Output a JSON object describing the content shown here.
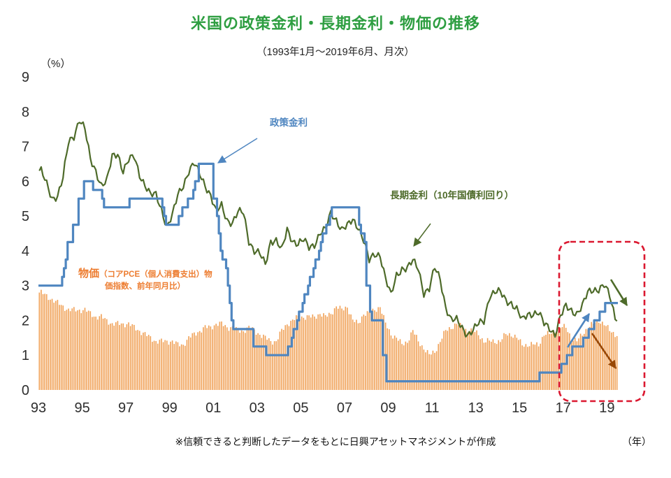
{
  "header": {
    "title": "米国の政策金利・長期金利・物価の推移",
    "subtitle": "（1993年1月～2019年6月、月次）"
  },
  "axes": {
    "percent_label": "（%）",
    "year_label": "（年）"
  },
  "footer": {
    "note": "※信頼できると判断したデータをもとに日興アセットマネジメントが作成"
  },
  "annotations": {
    "policy_label": "政策金利",
    "longterm_label": "長期金利（10年国債利回り）",
    "price_label_main": "物価",
    "price_label_rest": "（コアPCE（個人消費支出）物",
    "price_label_line2": "価指数、前年同月比）",
    "price_label_full": "物価（コアPCE（個人消費支出）物価指数、前年同月比）"
  },
  "colors": {
    "title": "#2e9e41",
    "policy": "#4f86c0",
    "longterm": "#4e6b2a",
    "price": "#f0a055",
    "price_text": "#ed7d31",
    "highlight": "#db1830",
    "arrow_brown": "#984807",
    "axis_text": "#2e2e2e"
  },
  "chart_data": {
    "type": "combo",
    "period": "1993-01 to 2019-06, monthly",
    "ylim": [
      0,
      9
    ],
    "y_ticks": [
      0,
      1,
      2,
      3,
      4,
      5,
      6,
      7,
      8,
      9
    ],
    "x_tick_years": [
      1993,
      1995,
      1997,
      1999,
      2001,
      2003,
      2005,
      2007,
      2009,
      2011,
      2013,
      2015,
      2017,
      2019
    ],
    "x_tick_labels": [
      "93",
      "95",
      "97",
      "99",
      "01",
      "03",
      "05",
      "07",
      "09",
      "11",
      "13",
      "15",
      "17",
      "19"
    ],
    "grid": false,
    "legend": "inline text annotations with arrows",
    "series": [
      {
        "name": "政策金利",
        "type": "step-line",
        "color_key": "policy",
        "points_note": "FF target rate changes [month, %]; constant until next change; ends 2019-06 at 2.5",
        "points": [
          [
            "1993-01",
            3.0
          ],
          [
            "1994-02",
            3.25
          ],
          [
            "1994-03",
            3.5
          ],
          [
            "1994-04",
            3.75
          ],
          [
            "1994-05",
            4.25
          ],
          [
            "1994-08",
            4.75
          ],
          [
            "1994-11",
            5.5
          ],
          [
            "1995-02",
            6.0
          ],
          [
            "1995-07",
            5.75
          ],
          [
            "1995-12",
            5.5
          ],
          [
            "1996-01",
            5.25
          ],
          [
            "1997-03",
            5.5
          ],
          [
            "1998-09",
            5.25
          ],
          [
            "1998-10",
            5.0
          ],
          [
            "1998-11",
            4.75
          ],
          [
            "1999-06",
            5.0
          ],
          [
            "1999-08",
            5.25
          ],
          [
            "1999-11",
            5.5
          ],
          [
            "2000-02",
            5.75
          ],
          [
            "2000-03",
            6.0
          ],
          [
            "2000-05",
            6.5
          ],
          [
            "2001-01",
            5.5
          ],
          [
            "2001-03",
            5.0
          ],
          [
            "2001-04",
            4.5
          ],
          [
            "2001-05",
            4.0
          ],
          [
            "2001-06",
            3.75
          ],
          [
            "2001-08",
            3.5
          ],
          [
            "2001-09",
            3.0
          ],
          [
            "2001-10",
            2.5
          ],
          [
            "2001-11",
            2.0
          ],
          [
            "2001-12",
            1.75
          ],
          [
            "2002-11",
            1.25
          ],
          [
            "2003-06",
            1.0
          ],
          [
            "2004-06",
            1.25
          ],
          [
            "2004-08",
            1.5
          ],
          [
            "2004-09",
            1.75
          ],
          [
            "2004-11",
            2.0
          ],
          [
            "2004-12",
            2.25
          ],
          [
            "2005-02",
            2.5
          ],
          [
            "2005-03",
            2.75
          ],
          [
            "2005-05",
            3.0
          ],
          [
            "2005-06",
            3.25
          ],
          [
            "2005-08",
            3.5
          ],
          [
            "2005-09",
            3.75
          ],
          [
            "2005-11",
            4.0
          ],
          [
            "2005-12",
            4.25
          ],
          [
            "2006-01",
            4.5
          ],
          [
            "2006-03",
            4.75
          ],
          [
            "2006-05",
            5.0
          ],
          [
            "2006-06",
            5.25
          ],
          [
            "2007-09",
            4.75
          ],
          [
            "2007-10",
            4.5
          ],
          [
            "2007-12",
            4.25
          ],
          [
            "2008-01",
            3.0
          ],
          [
            "2008-03",
            2.25
          ],
          [
            "2008-04",
            2.0
          ],
          [
            "2008-10",
            1.0
          ],
          [
            "2008-12",
            0.25
          ],
          [
            "2015-12",
            0.5
          ],
          [
            "2016-12",
            0.75
          ],
          [
            "2017-03",
            1.0
          ],
          [
            "2017-06",
            1.25
          ],
          [
            "2017-12",
            1.5
          ],
          [
            "2018-03",
            1.75
          ],
          [
            "2018-06",
            2.0
          ],
          [
            "2018-09",
            2.25
          ],
          [
            "2018-12",
            2.5
          ]
        ]
      },
      {
        "name": "長期金利（10年国債利回り）",
        "type": "line",
        "color_key": "longterm",
        "freq": "quarterly estimates 1993Q1-2019Q2 (rendered monthly)",
        "values": [
          6.3,
          5.9,
          5.5,
          5.6,
          6.1,
          7.1,
          7.3,
          7.8,
          7.5,
          6.6,
          6.3,
          5.9,
          6.0,
          6.7,
          6.8,
          6.3,
          6.6,
          6.7,
          6.2,
          5.9,
          5.6,
          5.6,
          5.2,
          4.7,
          5.0,
          5.6,
          5.9,
          6.3,
          6.5,
          6.2,
          5.9,
          5.6,
          5.1,
          5.3,
          4.9,
          4.8,
          5.1,
          5.1,
          4.3,
          4.0,
          3.9,
          3.6,
          4.3,
          4.3,
          4.0,
          4.6,
          4.3,
          4.2,
          4.3,
          4.1,
          4.2,
          4.5,
          4.6,
          5.1,
          4.9,
          4.6,
          4.7,
          4.9,
          4.7,
          4.3,
          3.7,
          3.9,
          3.9,
          3.2,
          2.7,
          3.3,
          3.5,
          3.5,
          3.7,
          3.5,
          2.8,
          2.9,
          3.5,
          3.2,
          2.4,
          2.0,
          2.0,
          1.8,
          1.6,
          1.7,
          1.9,
          2.0,
          2.7,
          2.8,
          2.8,
          2.6,
          2.5,
          2.3,
          2.0,
          2.2,
          2.2,
          2.2,
          1.9,
          1.8,
          1.6,
          2.1,
          2.4,
          2.3,
          2.2,
          2.4,
          2.8,
          2.9,
          2.9,
          3.0,
          2.7,
          2.1
        ]
      },
      {
        "name": "物価（コアPCE（個人消費支出）物価指数、前年同月比）",
        "type": "bar",
        "color_key": "price",
        "freq": "quarterly estimates 1993Q1-2019Q2 (rendered as monthly bars)",
        "values": [
          2.8,
          2.7,
          2.6,
          2.5,
          2.4,
          2.3,
          2.3,
          2.3,
          2.3,
          2.2,
          2.1,
          2.1,
          2.0,
          1.9,
          1.9,
          1.9,
          1.9,
          1.8,
          1.7,
          1.6,
          1.5,
          1.4,
          1.4,
          1.4,
          1.4,
          1.3,
          1.3,
          1.5,
          1.6,
          1.7,
          1.8,
          1.8,
          1.9,
          1.9,
          1.8,
          1.8,
          1.7,
          1.7,
          1.8,
          1.7,
          1.6,
          1.5,
          1.4,
          1.4,
          1.7,
          1.9,
          2.0,
          2.1,
          2.1,
          2.1,
          2.1,
          2.2,
          2.1,
          2.2,
          2.4,
          2.3,
          2.4,
          2.0,
          1.9,
          2.2,
          2.2,
          2.3,
          2.4,
          1.9,
          1.6,
          1.5,
          1.3,
          1.4,
          1.7,
          1.4,
          1.2,
          1.0,
          1.1,
          1.4,
          1.7,
          1.8,
          1.9,
          1.8,
          1.7,
          1.7,
          1.6,
          1.4,
          1.4,
          1.4,
          1.4,
          1.6,
          1.6,
          1.5,
          1.3,
          1.3,
          1.3,
          1.3,
          1.6,
          1.6,
          1.7,
          1.8,
          1.8,
          1.5,
          1.4,
          1.6,
          1.8,
          1.9,
          2.0,
          1.9,
          1.7,
          1.6
        ]
      }
    ],
    "highlight": {
      "description": "red dashed rounded box over 2017-2019 with blue rising-rate arrow, green falling-yield arrow, brown falling-inflation arrow"
    }
  }
}
